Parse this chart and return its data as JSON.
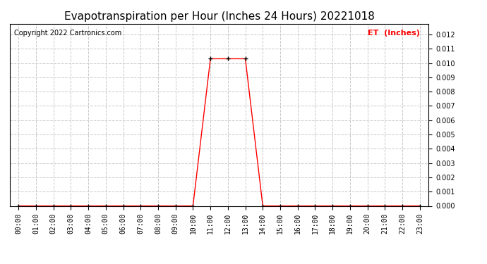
{
  "title": "Evapotranspiration per Hour (Inches 24 Hours) 20221018",
  "copyright": "Copyright 2022 Cartronics.com",
  "legend_label": "ET  (Inches)",
  "legend_color": "#ff0000",
  "line_color": "#ff0000",
  "marker": "+",
  "marker_color": "#000000",
  "background_color": "#ffffff",
  "grid_color": "#c8c8c8",
  "hours": [
    0,
    1,
    2,
    3,
    4,
    5,
    6,
    7,
    8,
    9,
    10,
    11,
    12,
    13,
    14,
    15,
    16,
    17,
    18,
    19,
    20,
    21,
    22,
    23
  ],
  "values": [
    0.0,
    0.0,
    0.0,
    0.0,
    0.0,
    0.0,
    0.0,
    0.0,
    0.0,
    0.0,
    0.0,
    0.0103,
    0.0103,
    0.0103,
    0.0,
    0.0,
    0.0,
    0.0,
    0.0,
    0.0,
    0.0,
    0.0,
    0.0,
    0.0
  ],
  "ylim": [
    0.0,
    0.01275
  ],
  "yticks": [
    0.0,
    0.001,
    0.002,
    0.003,
    0.004,
    0.005,
    0.006,
    0.007,
    0.008,
    0.009,
    0.01,
    0.011,
    0.012
  ],
  "xlim": [
    -0.5,
    23.5
  ],
  "title_fontsize": 11,
  "tick_fontsize": 7,
  "copyright_fontsize": 7
}
